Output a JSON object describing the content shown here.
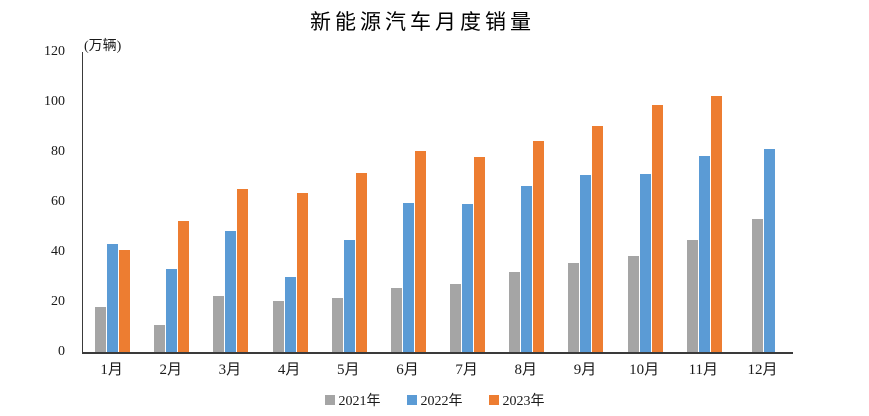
{
  "chart_data": {
    "type": "bar",
    "title": "新能源汽车月度销量",
    "y_unit_label": "(万辆)",
    "categories": [
      "1月",
      "2月",
      "3月",
      "4月",
      "5月",
      "6月",
      "7月",
      "8月",
      "9月",
      "10月",
      "11月",
      "12月"
    ],
    "series": [
      {
        "name": "2021年",
        "color": "#A5A5A5",
        "values": [
          17.9,
          11.0,
          22.6,
          20.6,
          21.7,
          25.6,
          27.1,
          32.1,
          35.7,
          38.3,
          45.0,
          53.1
        ]
      },
      {
        "name": "2022年",
        "color": "#5B9BD5",
        "values": [
          43.1,
          33.4,
          48.4,
          29.9,
          44.7,
          59.6,
          59.3,
          66.6,
          70.8,
          71.4,
          78.6,
          81.4
        ]
      },
      {
        "name": "2023年",
        "color": "#ED7D31",
        "values": [
          40.8,
          52.5,
          65.3,
          63.6,
          71.7,
          80.6,
          78.0,
          84.6,
          90.4,
          99.0,
          102.6,
          null
        ]
      }
    ],
    "xlabel": "",
    "ylabel": "",
    "ylim": [
      0,
      120
    ],
    "yticks": [
      0,
      20,
      40,
      60,
      80,
      100,
      120
    ],
    "grid": false,
    "legend_position": "bottom",
    "axis_color": "#3a3a3a",
    "background_color": "#ffffff"
  }
}
